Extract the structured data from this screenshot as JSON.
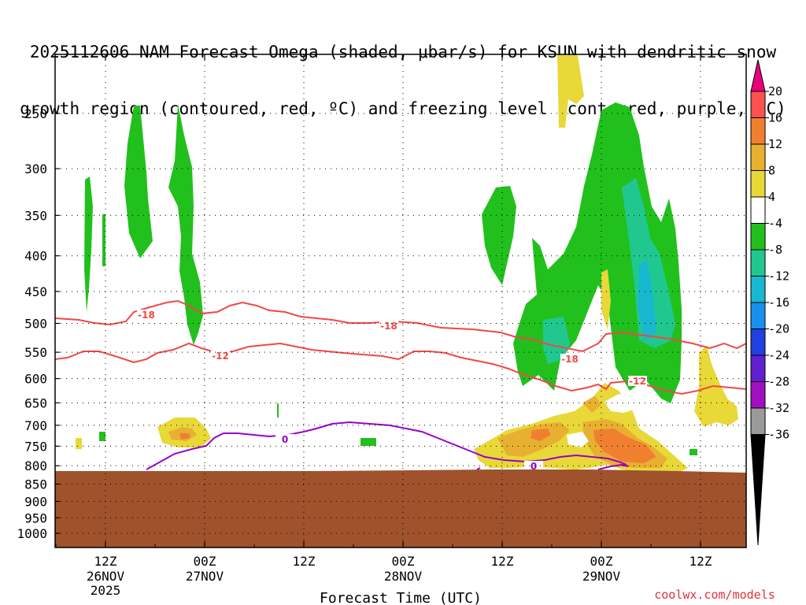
{
  "title_line1": "2025112606 NAM Forecast Omega (shaded, μbar/s) for KSUN with dendritic snow",
  "title_line2": "growth region (contoured, red, ºC) and freezing level (contoured, purple, ºC)",
  "chart_data": {
    "type": "heatmap",
    "xlabel": "Forecast Time (UTC)",
    "ylabel": "",
    "credit": "coolwx.com/models",
    "pressure_ticks": [
      250,
      300,
      350,
      400,
      450,
      500,
      550,
      600,
      650,
      700,
      750,
      800,
      850,
      900,
      950,
      1000
    ],
    "time_ticks": [
      {
        "label": "12Z",
        "date": "26NOV",
        "year": "2025"
      },
      {
        "label": "00Z",
        "date": "27NOV",
        "year": ""
      },
      {
        "label": "12Z",
        "date": "",
        "year": ""
      },
      {
        "label": "00Z",
        "date": "28NOV",
        "year": ""
      },
      {
        "label": "12Z",
        "date": "",
        "year": ""
      },
      {
        "label": "00Z",
        "date": "29NOV",
        "year": ""
      },
      {
        "label": "12Z",
        "date": "",
        "year": ""
      }
    ],
    "colorbar_labels": [
      "20",
      "16",
      "12",
      "8",
      "4",
      "-4",
      "-8",
      "-12",
      "-16",
      "-20",
      "-24",
      "-28",
      "-32",
      "-36"
    ],
    "colorbar_colors": [
      "#ff5050",
      "#f08030",
      "#e8b030",
      "#e8d838",
      "#ffffff",
      "#22c01c",
      "#20c890",
      "#18b8d0",
      "#1890f0",
      "#2040e0",
      "#6020d0",
      "#a010c0",
      "#9a9a9a"
    ],
    "colorbar_top_color": "#e8007c",
    "colorbar_bottom_color": "#000000",
    "ground_color": "#a0522d",
    "contours": {
      "dgz_color": "#f04848",
      "freezing_color": "#9a00c8",
      "labels": [
        "-18",
        "-12",
        "-18",
        "-18",
        "-12",
        "0",
        "0"
      ]
    }
  }
}
